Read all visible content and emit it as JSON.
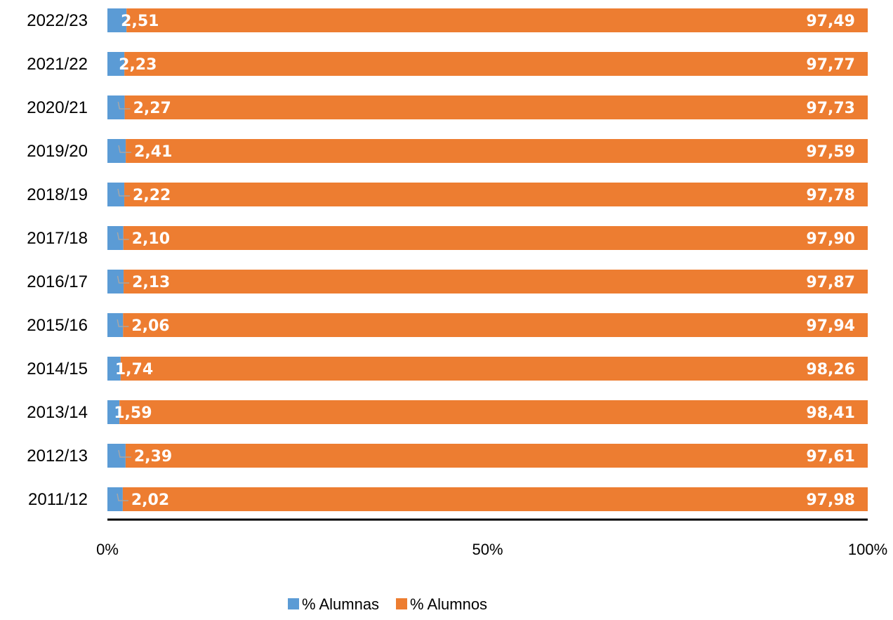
{
  "chart_data": {
    "type": "bar",
    "orientation": "horizontal",
    "stacked": "100%",
    "categories": [
      "2022/23",
      "2021/22",
      "2020/21",
      "2019/20",
      "2018/19",
      "2017/18",
      "2016/17",
      "2015/16",
      "2014/15",
      "2013/14",
      "2012/13",
      "2011/12"
    ],
    "series": [
      {
        "name": "% Alumnas",
        "color": "#5B9BD5",
        "values": [
          2.51,
          2.23,
          2.27,
          2.41,
          2.22,
          2.1,
          2.13,
          2.06,
          1.74,
          1.59,
          2.39,
          2.02
        ],
        "labels": [
          "2,51",
          "2,23",
          "2,27",
          "2,41",
          "2,22",
          "2,10",
          "2,13",
          "2,06",
          "1,74",
          "1,59",
          "2,39",
          "2,02"
        ]
      },
      {
        "name": "% Alumnos",
        "color": "#ED7D31",
        "values": [
          97.49,
          97.77,
          97.73,
          97.59,
          97.78,
          97.9,
          97.87,
          97.94,
          98.26,
          98.41,
          97.61,
          97.98
        ],
        "labels": [
          "97,49",
          "97,77",
          "97,73",
          "97,59",
          "97,78",
          "97,90",
          "97,87",
          "97,94",
          "98,26",
          "98,41",
          "97,61",
          "97,98"
        ]
      }
    ],
    "leader_lines": [
      false,
      false,
      true,
      true,
      true,
      true,
      true,
      true,
      false,
      false,
      true,
      true
    ],
    "xlim": [
      0,
      100
    ],
    "xticks": [
      "0%",
      "50%",
      "100%"
    ],
    "grid": false,
    "legend_position": "bottom",
    "title": "",
    "xlabel": "",
    "ylabel": ""
  }
}
